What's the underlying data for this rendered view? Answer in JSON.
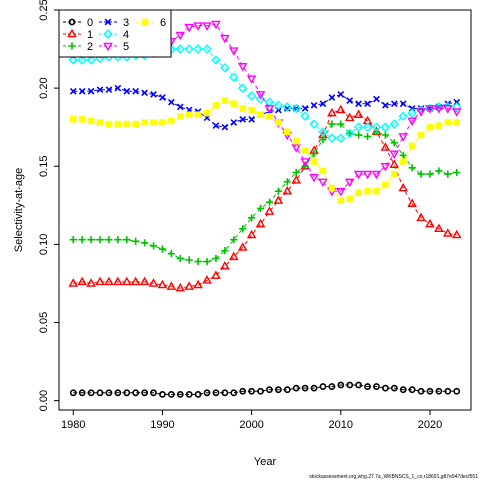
{
  "chart_data": {
    "type": "line",
    "xlabel": "Year",
    "ylabel": "Selectivity-at-age",
    "xlim": [
      1978.4,
      2024.6
    ],
    "ylim": [
      -0.006,
      0.25
    ],
    "xticks": [
      1980,
      1990,
      2000,
      2010,
      2020
    ],
    "yticks": [
      0.0,
      0.05,
      0.1,
      0.15,
      0.2,
      0.25
    ],
    "ytick_labels": [
      "0.00",
      "0.05",
      "0.10",
      "0.15",
      "0.20",
      "0.25"
    ],
    "grid": false,
    "legend_position": "top-left",
    "caption": "stockassessment.org,whg.27.7a_WKBNSCS_1_co,r18691,g87e947decf551",
    "x": [
      1980,
      1981,
      1982,
      1983,
      1984,
      1985,
      1986,
      1987,
      1988,
      1989,
      1990,
      1991,
      1992,
      1993,
      1994,
      1995,
      1996,
      1997,
      1998,
      1999,
      2000,
      2001,
      2002,
      2003,
      2004,
      2005,
      2006,
      2007,
      2008,
      2009,
      2010,
      2011,
      2012,
      2013,
      2014,
      2015,
      2016,
      2017,
      2018,
      2019,
      2020,
      2021,
      2022,
      2023
    ],
    "series": [
      {
        "name": "0",
        "color": "#000000",
        "marker": "circle",
        "values": [
          0.005,
          0.005,
          0.005,
          0.005,
          0.005,
          0.005,
          0.005,
          0.005,
          0.005,
          0.005,
          0.004,
          0.004,
          0.004,
          0.004,
          0.004,
          0.005,
          0.005,
          0.005,
          0.005,
          0.006,
          0.006,
          0.006,
          0.007,
          0.007,
          0.007,
          0.008,
          0.008,
          0.008,
          0.009,
          0.009,
          0.01,
          0.01,
          0.01,
          0.009,
          0.009,
          0.008,
          0.008,
          0.007,
          0.007,
          0.006,
          0.006,
          0.006,
          0.006,
          0.006
        ]
      },
      {
        "name": "1",
        "color": "#ff0000",
        "marker": "triangle",
        "values": [
          0.075,
          0.076,
          0.075,
          0.076,
          0.076,
          0.076,
          0.076,
          0.076,
          0.076,
          0.075,
          0.074,
          0.073,
          0.072,
          0.073,
          0.074,
          0.077,
          0.08,
          0.086,
          0.092,
          0.098,
          0.106,
          0.113,
          0.121,
          0.128,
          0.134,
          0.141,
          0.15,
          0.16,
          0.17,
          0.184,
          0.186,
          0.181,
          0.183,
          0.179,
          0.172,
          0.162,
          0.151,
          0.136,
          0.126,
          0.117,
          0.113,
          0.11,
          0.107,
          0.106
        ]
      },
      {
        "name": "2",
        "color": "#00c000",
        "marker": "plus",
        "values": [
          0.103,
          0.103,
          0.103,
          0.103,
          0.103,
          0.103,
          0.103,
          0.102,
          0.101,
          0.099,
          0.097,
          0.094,
          0.091,
          0.09,
          0.089,
          0.089,
          0.091,
          0.096,
          0.103,
          0.11,
          0.117,
          0.123,
          0.127,
          0.134,
          0.14,
          0.146,
          0.15,
          0.158,
          0.167,
          0.177,
          0.177,
          0.171,
          0.17,
          0.169,
          0.172,
          0.17,
          0.165,
          0.157,
          0.149,
          0.145,
          0.145,
          0.147,
          0.145,
          0.146
        ]
      },
      {
        "name": "3",
        "color": "#0000ff",
        "marker": "x",
        "values": [
          0.198,
          0.198,
          0.198,
          0.199,
          0.199,
          0.2,
          0.198,
          0.198,
          0.197,
          0.196,
          0.194,
          0.191,
          0.188,
          0.186,
          0.185,
          0.181,
          0.176,
          0.175,
          0.178,
          0.18,
          0.18,
          0.183,
          0.185,
          0.186,
          0.187,
          0.187,
          0.187,
          0.189,
          0.19,
          0.194,
          0.196,
          0.192,
          0.19,
          0.19,
          0.193,
          0.189,
          0.19,
          0.19,
          0.187,
          0.187,
          0.187,
          0.188,
          0.19,
          0.191
        ]
      },
      {
        "name": "4",
        "color": "#00ffff",
        "marker": "diamond",
        "values": [
          0.218,
          0.218,
          0.218,
          0.219,
          0.22,
          0.22,
          0.22,
          0.221,
          0.221,
          0.222,
          0.223,
          0.225,
          0.225,
          0.225,
          0.225,
          0.225,
          0.218,
          0.213,
          0.207,
          0.2,
          0.195,
          0.193,
          0.191,
          0.189,
          0.188,
          0.187,
          0.182,
          0.177,
          0.172,
          0.168,
          0.168,
          0.171,
          0.175,
          0.175,
          0.175,
          0.175,
          0.177,
          0.182,
          0.184,
          0.186,
          0.187,
          0.188,
          0.188,
          0.188
        ]
      },
      {
        "name": "5",
        "color": "#ff00ff",
        "marker": "triangle-down",
        "values": [
          0.222,
          0.222,
          0.222,
          0.222,
          0.223,
          0.223,
          0.225,
          0.225,
          0.225,
          0.225,
          0.226,
          0.23,
          0.234,
          0.239,
          0.24,
          0.24,
          0.241,
          0.232,
          0.224,
          0.214,
          0.206,
          0.196,
          0.187,
          0.178,
          0.17,
          0.162,
          0.153,
          0.143,
          0.14,
          0.134,
          0.134,
          0.14,
          0.145,
          0.145,
          0.145,
          0.15,
          0.158,
          0.169,
          0.179,
          0.185,
          0.187,
          0.187,
          0.187,
          0.185
        ]
      },
      {
        "name": "6",
        "color": "#ffff00",
        "marker": "square",
        "values": [
          0.18,
          0.18,
          0.179,
          0.178,
          0.177,
          0.177,
          0.177,
          0.177,
          0.178,
          0.178,
          0.178,
          0.179,
          0.182,
          0.183,
          0.183,
          0.184,
          0.189,
          0.192,
          0.19,
          0.187,
          0.186,
          0.183,
          0.182,
          0.178,
          0.172,
          0.166,
          0.16,
          0.153,
          0.147,
          0.136,
          0.128,
          0.129,
          0.133,
          0.134,
          0.134,
          0.138,
          0.145,
          0.153,
          0.163,
          0.17,
          0.175,
          0.176,
          0.178,
          0.178
        ]
      }
    ]
  }
}
